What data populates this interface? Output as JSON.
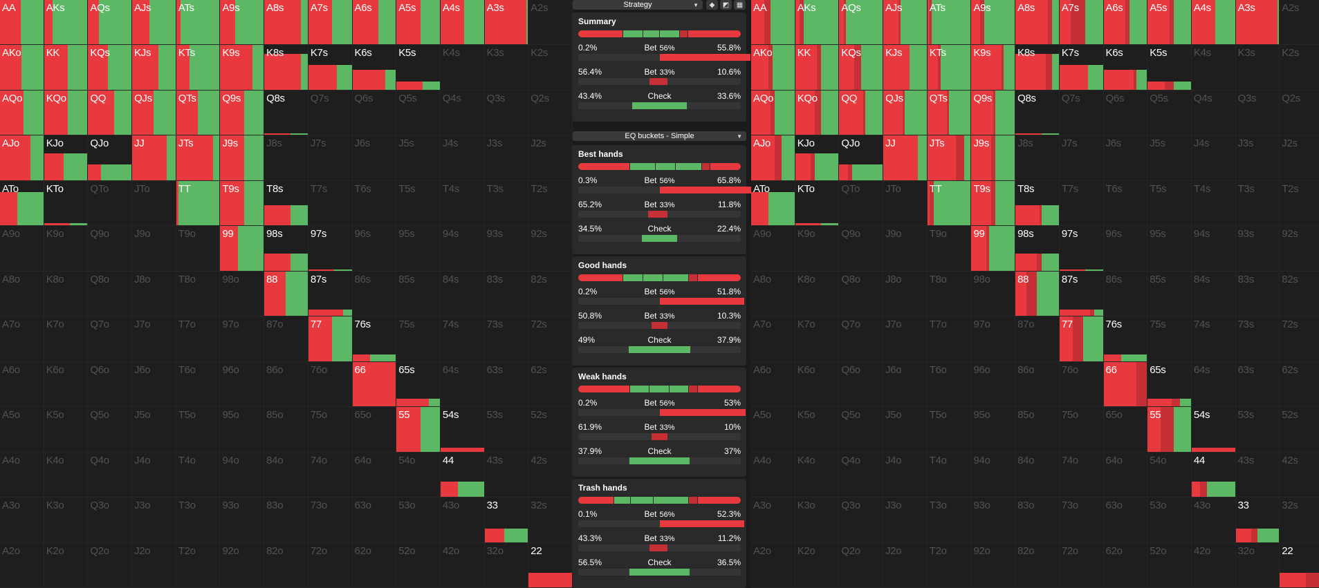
{
  "colors": {
    "bet_large": "#e8393f",
    "bet_small": "#c43035",
    "check": "#5cb865"
  },
  "left_grid": {
    "labels": [
      "AA",
      "AKs",
      "AQs",
      "AJs",
      "ATs",
      "A9s",
      "A8s",
      "A7s",
      "A6s",
      "A5s",
      "A4s",
      "A3s",
      "A2s",
      "AKo",
      "KK",
      "KQs",
      "KJs",
      "KTs",
      "K9s",
      "K8s",
      "K7s",
      "K6s",
      "K5s",
      "K4s",
      "K3s",
      "K2s",
      "AQo",
      "KQo",
      "QQ",
      "QJs",
      "QTs",
      "Q9s",
      "Q8s",
      "Q7s",
      "Q6s",
      "Q5s",
      "Q4s",
      "Q3s",
      "Q2s",
      "AJo",
      "KJo",
      "QJo",
      "JJ",
      "JTs",
      "J9s",
      "J8s",
      "J7s",
      "J6s",
      "J5s",
      "J4s",
      "J3s",
      "J2s",
      "ATo",
      "KTo",
      "QTo",
      "JTo",
      "TT",
      "T9s",
      "T8s",
      "T7s",
      "T6s",
      "T5s",
      "T4s",
      "T3s",
      "T2s",
      "A9o",
      "K9o",
      "Q9o",
      "J9o",
      "T9o",
      "99",
      "98s",
      "97s",
      "96s",
      "95s",
      "94s",
      "93s",
      "92s",
      "A8o",
      "K8o",
      "Q8o",
      "J8o",
      "T8o",
      "98o",
      "88",
      "87s",
      "86s",
      "85s",
      "84s",
      "83s",
      "82s",
      "A7o",
      "K7o",
      "Q7o",
      "J7o",
      "T7o",
      "97o",
      "87o",
      "77",
      "76s",
      "75s",
      "74s",
      "73s",
      "72s",
      "A6o",
      "K6o",
      "Q6o",
      "J6o",
      "T6o",
      "96o",
      "86o",
      "76o",
      "66",
      "65s",
      "64s",
      "63s",
      "62s",
      "A5o",
      "K5o",
      "Q5o",
      "J5o",
      "T5o",
      "95o",
      "85o",
      "75o",
      "65o",
      "55",
      "54s",
      "53s",
      "52s",
      "A4o",
      "K4o",
      "Q4o",
      "J4o",
      "T4o",
      "94o",
      "84o",
      "74o",
      "64o",
      "54o",
      "44",
      "43s",
      "42s",
      "A3o",
      "K3o",
      "Q3o",
      "J3o",
      "T3o",
      "93o",
      "83o",
      "73o",
      "63o",
      "53o",
      "43o",
      "33",
      "32s",
      "A2o",
      "K2o",
      "Q2o",
      "J2o",
      "T2o",
      "92o",
      "82o",
      "72o",
      "62o",
      "52o",
      "42o",
      "32o",
      "22"
    ]
  },
  "right_grid": {
    "labels": [
      "AA",
      "AKs",
      "AQs",
      "AJs",
      "ATs",
      "A9s",
      "A8s",
      "A7s",
      "A6s",
      "A5s",
      "A4s",
      "A3s",
      "A2s",
      "AKo",
      "KK",
      "KQs",
      "KJs",
      "KTs",
      "K9s",
      "K8s",
      "K7s",
      "K6s",
      "K5s",
      "K4s",
      "K3s",
      "K2s",
      "AQo",
      "KQo",
      "QQ",
      "QJs",
      "QTs",
      "Q9s",
      "Q8s",
      "Q7s",
      "Q6s",
      "Q5s",
      "Q4s",
      "Q3s",
      "Q2s",
      "AJo",
      "KJo",
      "QJo",
      "JJ",
      "JTs",
      "J9s",
      "J8s",
      "J7s",
      "J6s",
      "J5s",
      "J4s",
      "J3s",
      "J2s",
      "ATo",
      "KTo",
      "QTo",
      "JTo",
      "TT",
      "T9s",
      "T8s",
      "T7s",
      "T6s",
      "T5s",
      "T4s",
      "T3s",
      "T2s",
      "A9o",
      "K9o",
      "Q9o",
      "J9o",
      "T9o",
      "99",
      "98s",
      "97s",
      "96s",
      "95s",
      "94s",
      "93s",
      "92s",
      "A8o",
      "K8o",
      "Q8o",
      "J8o",
      "T8o",
      "98o",
      "88",
      "87s",
      "86s",
      "85s",
      "84s",
      "83s",
      "82s",
      "A7o",
      "K7o",
      "Q7o",
      "J7o",
      "T7o",
      "97o",
      "87o",
      "77",
      "76s",
      "75s",
      "74s",
      "73s",
      "72s",
      "A6o",
      "K6o",
      "Q6o",
      "J6o",
      "T6o",
      "96o",
      "86o",
      "76o",
      "66",
      "65s",
      "64s",
      "63s",
      "62s",
      "A5o",
      "K5o",
      "Q5o",
      "J5o",
      "T5o",
      "95o",
      "85o",
      "75o",
      "65o",
      "55",
      "54s",
      "53s",
      "52s",
      "A4o",
      "K4o",
      "Q4o",
      "J4o",
      "T4o",
      "94o",
      "84o",
      "74o",
      "64o",
      "54o",
      "44",
      "43s",
      "42s",
      "A3o",
      "K3o",
      "Q3o",
      "J3o",
      "T3o",
      "93o",
      "83o",
      "73o",
      "63o",
      "53o",
      "43o",
      "33",
      "32s",
      "A2o",
      "K2o",
      "Q2o",
      "J2o",
      "T2o",
      "92o",
      "82o",
      "72o",
      "62o",
      "52o",
      "42o",
      "32o",
      "22"
    ]
  },
  "hands": {
    "AA": {
      "w": 1,
      "f": [
        0.48,
        0,
        0.52
      ]
    },
    "AKs": {
      "w": 1,
      "f": [
        0.2,
        0,
        0.8
      ]
    },
    "AQs": {
      "w": 1,
      "f": [
        0.25,
        0,
        0.75
      ]
    },
    "AJs": {
      "w": 1,
      "f": [
        0.4,
        0,
        0.6
      ]
    },
    "ATs": {
      "w": 1,
      "f": [
        0.1,
        0,
        0.9
      ]
    },
    "A9s": {
      "w": 1,
      "f": [
        0.35,
        0,
        0.65
      ]
    },
    "A8s": {
      "w": 1,
      "f": [
        0.85,
        0,
        0.15
      ]
    },
    "A7s": {
      "w": 1,
      "f": [
        0.55,
        0,
        0.45
      ]
    },
    "A6s": {
      "w": 1,
      "f": [
        0.6,
        0,
        0.4
      ]
    },
    "A5s": {
      "w": 1,
      "f": [
        0.55,
        0,
        0.45
      ]
    },
    "A4s": {
      "w": 1,
      "f": [
        0.55,
        0,
        0.45
      ]
    },
    "A3s": {
      "w": 1,
      "f": [
        0.96,
        0,
        0.04
      ]
    },
    "AKo": {
      "w": 1,
      "f": [
        0.5,
        0,
        0.5
      ]
    },
    "KK": {
      "w": 1,
      "f": [
        0.55,
        0,
        0.45
      ]
    },
    "KQs": {
      "w": 1,
      "f": [
        0.45,
        0,
        0.55
      ]
    },
    "KJs": {
      "w": 1,
      "f": [
        0.6,
        0,
        0.4
      ]
    },
    "KTs": {
      "w": 1,
      "f": [
        0.3,
        0,
        0.7
      ]
    },
    "K9s": {
      "w": 1,
      "f": [
        0.75,
        0,
        0.25
      ]
    },
    "K8s": {
      "w": 0.8,
      "f": [
        0.85,
        0,
        0.15
      ]
    },
    "K7s": {
      "w": 0.55,
      "f": [
        0.65,
        0,
        0.35
      ]
    },
    "K6s": {
      "w": 0.45,
      "f": [
        0.75,
        0,
        0.25
      ]
    },
    "K5s": {
      "w": 0.18,
      "f": [
        0.6,
        0,
        0.4
      ]
    },
    "AQo": {
      "w": 1,
      "f": [
        0.55,
        0,
        0.45
      ]
    },
    "KQo": {
      "w": 1,
      "f": [
        0.55,
        0,
        0.45
      ]
    },
    "QQ": {
      "w": 1,
      "f": [
        0.6,
        0,
        0.4
      ]
    },
    "QJs": {
      "w": 1,
      "f": [
        0.5,
        0,
        0.5
      ]
    },
    "QTs": {
      "w": 1,
      "f": [
        0.5,
        0,
        0.5
      ]
    },
    "Q9s": {
      "w": 1,
      "f": [
        0.55,
        0,
        0.45
      ]
    },
    "Q8s": {
      "w": 0.04,
      "f": [
        0.6,
        0,
        0.4
      ]
    },
    "AJo": {
      "w": 1,
      "f": [
        0.7,
        0,
        0.3
      ]
    },
    "KJo": {
      "w": 0.6,
      "f": [
        0.45,
        0,
        0.55
      ]
    },
    "QJo": {
      "w": 0.35,
      "f": [
        0.3,
        0,
        0.7
      ]
    },
    "JJ": {
      "w": 1,
      "f": [
        0.8,
        0,
        0.2
      ]
    },
    "JTs": {
      "w": 1,
      "f": [
        0.85,
        0,
        0.15
      ]
    },
    "J9s": {
      "w": 1,
      "f": [
        0.55,
        0,
        0.45
      ]
    },
    "ATo": {
      "w": 0.75,
      "f": [
        0.4,
        0,
        0.6
      ]
    },
    "KTo": {
      "w": 0.05,
      "f": [
        0.6,
        0,
        0.4
      ]
    },
    "TT": {
      "w": 1,
      "f": [
        0.05,
        0,
        0.95
      ]
    },
    "T9s": {
      "w": 1,
      "f": [
        0.55,
        0,
        0.45
      ]
    },
    "T8s": {
      "w": 0.45,
      "f": [
        0.6,
        0,
        0.4
      ]
    },
    "99": {
      "w": 1,
      "f": [
        0.4,
        0,
        0.6
      ]
    },
    "98s": {
      "w": 0.38,
      "f": [
        0.6,
        0,
        0.4
      ]
    },
    "97s": {
      "w": 0.02,
      "f": [
        0.6,
        0,
        0.4
      ]
    },
    "88": {
      "w": 1,
      "f": [
        0.5,
        0,
        0.5
      ]
    },
    "87s": {
      "w": 0.15,
      "f": [
        0.8,
        0,
        0.2
      ]
    },
    "77": {
      "w": 1,
      "f": [
        0.55,
        0,
        0.45
      ]
    },
    "76s": {
      "w": 0.15,
      "f": [
        0.4,
        0,
        0.6
      ]
    },
    "66": {
      "w": 1,
      "f": [
        1,
        0,
        0
      ]
    },
    "65s": {
      "w": 0.18,
      "f": [
        0.75,
        0,
        0.25
      ]
    },
    "55": {
      "w": 1,
      "f": [
        0.55,
        0,
        0.45
      ]
    },
    "54s": {
      "w": 0.08,
      "f": [
        1,
        0,
        0
      ]
    },
    "44": {
      "w": 0.35,
      "f": [
        0.4,
        0,
        0.6
      ]
    },
    "33": {
      "w": 0.3,
      "f": [
        0.45,
        0,
        0.55
      ]
    },
    "22": {
      "w": 0.33,
      "f": [
        1,
        0,
        0
      ]
    }
  },
  "hands_right": {
    "AA": {
      "w": 1,
      "f": [
        0.3,
        0.15,
        0.55
      ]
    },
    "AKs": {
      "w": 1,
      "f": [
        0.1,
        0.1,
        0.8
      ]
    },
    "AQs": {
      "w": 1,
      "f": [
        0.1,
        0.05,
        0.85
      ]
    },
    "AJs": {
      "w": 1,
      "f": [
        0.35,
        0.05,
        0.6
      ]
    },
    "ATs": {
      "w": 1,
      "f": [
        0.05,
        0.05,
        0.9
      ]
    },
    "A9s": {
      "w": 1,
      "f": [
        0.2,
        0.1,
        0.7
      ]
    },
    "A8s": {
      "w": 1,
      "f": [
        0.75,
        0.1,
        0.15
      ]
    },
    "A7s": {
      "w": 1,
      "f": [
        0.25,
        0.35,
        0.4
      ]
    },
    "A6s": {
      "w": 1,
      "f": [
        0.5,
        0.1,
        0.4
      ]
    },
    "A5s": {
      "w": 1,
      "f": [
        0.5,
        0.1,
        0.4
      ]
    },
    "A4s": {
      "w": 1,
      "f": [
        0.55,
        0,
        0.45
      ]
    },
    "A3s": {
      "w": 1,
      "f": [
        0.96,
        0,
        0.04
      ]
    },
    "AKo": {
      "w": 1,
      "f": [
        0.4,
        0.1,
        0.5
      ]
    },
    "KK": {
      "w": 1,
      "f": [
        0.5,
        0.1,
        0.4
      ]
    },
    "KQs": {
      "w": 1,
      "f": [
        0.35,
        0.15,
        0.5
      ]
    },
    "KJs": {
      "w": 1,
      "f": [
        0.6,
        0,
        0.4
      ]
    },
    "KTs": {
      "w": 1,
      "f": [
        0.25,
        0.05,
        0.7
      ]
    },
    "K9s": {
      "w": 1,
      "f": [
        0.7,
        0.05,
        0.25
      ]
    },
    "K8s": {
      "w": 0.8,
      "f": [
        0.7,
        0.15,
        0.15
      ]
    },
    "K7s": {
      "w": 0.55,
      "f": [
        0.65,
        0,
        0.35
      ]
    },
    "K6s": {
      "w": 0.45,
      "f": [
        0.7,
        0.05,
        0.25
      ]
    },
    "K5s": {
      "w": 0.18,
      "f": [
        0.4,
        0.2,
        0.4
      ]
    },
    "AQo": {
      "w": 1,
      "f": [
        0.45,
        0.1,
        0.45
      ]
    },
    "KQo": {
      "w": 1,
      "f": [
        0.45,
        0.15,
        0.4
      ]
    },
    "QQ": {
      "w": 1,
      "f": [
        0.55,
        0.05,
        0.4
      ]
    },
    "QJs": {
      "w": 1,
      "f": [
        0.45,
        0.05,
        0.5
      ]
    },
    "QTs": {
      "w": 1,
      "f": [
        0.45,
        0.05,
        0.5
      ]
    },
    "Q9s": {
      "w": 1,
      "f": [
        0.5,
        0.05,
        0.45
      ]
    },
    "Q8s": {
      "w": 0.04,
      "f": [
        0.6,
        0,
        0.4
      ]
    },
    "AJo": {
      "w": 1,
      "f": [
        0.55,
        0.15,
        0.3
      ]
    },
    "KJo": {
      "w": 0.6,
      "f": [
        0.35,
        0.1,
        0.55
      ]
    },
    "QJo": {
      "w": 0.35,
      "f": [
        0.2,
        0.1,
        0.7
      ]
    },
    "JJ": {
      "w": 1,
      "f": [
        0.8,
        0,
        0.2
      ]
    },
    "JTs": {
      "w": 1,
      "f": [
        0.65,
        0.2,
        0.15
      ]
    },
    "J9s": {
      "w": 1,
      "f": [
        0.45,
        0.1,
        0.45
      ]
    },
    "ATo": {
      "w": 0.75,
      "f": [
        0.4,
        0,
        0.6
      ]
    },
    "KTo": {
      "w": 0.05,
      "f": [
        0.6,
        0,
        0.4
      ]
    },
    "TT": {
      "w": 1,
      "f": [
        0.05,
        0.1,
        0.85
      ]
    },
    "T9s": {
      "w": 1,
      "f": [
        0.45,
        0.1,
        0.45
      ]
    },
    "T8s": {
      "w": 0.45,
      "f": [
        0.55,
        0.05,
        0.4
      ]
    },
    "99": {
      "w": 1,
      "f": [
        0.35,
        0.05,
        0.6
      ]
    },
    "98s": {
      "w": 0.38,
      "f": [
        0.5,
        0.1,
        0.4
      ]
    },
    "97s": {
      "w": 0.02,
      "f": [
        0.6,
        0,
        0.4
      ]
    },
    "88": {
      "w": 1,
      "f": [
        0.25,
        0.25,
        0.5
      ]
    },
    "87s": {
      "w": 0.15,
      "f": [
        0.7,
        0.1,
        0.2
      ]
    },
    "77": {
      "w": 1,
      "f": [
        0.3,
        0.25,
        0.45
      ]
    },
    "76s": {
      "w": 0.15,
      "f": [
        0.4,
        0,
        0.6
      ]
    },
    "66": {
      "w": 1,
      "f": [
        0.75,
        0.25,
        0
      ]
    },
    "65s": {
      "w": 0.18,
      "f": [
        0.55,
        0.2,
        0.25
      ]
    },
    "55": {
      "w": 1,
      "f": [
        0.3,
        0.3,
        0.4
      ]
    },
    "54s": {
      "w": 0.08,
      "f": [
        1,
        0,
        0
      ]
    },
    "44": {
      "w": 0.35,
      "f": [
        0.2,
        0.15,
        0.65
      ]
    },
    "33": {
      "w": 0.3,
      "f": [
        0.35,
        0.15,
        0.5
      ]
    },
    "22": {
      "w": 0.33,
      "f": [
        0.6,
        0.4,
        0
      ]
    }
  },
  "toolbar": {
    "strategy_label": "Strategy",
    "buckets_label": "EQ buckets - Simple",
    "icons": [
      "cube-icon",
      "contrast-icon",
      "grid-icon"
    ]
  },
  "summary": {
    "title": "Summary",
    "bar": [
      0.28,
      0.12,
      0.1,
      0.12,
      0.05,
      0.33
    ],
    "rows": [
      {
        "left": "0.2%",
        "action": "Bet",
        "size": "56%",
        "right": "55.8%",
        "fill": 0.56,
        "kind": "bet_large"
      },
      {
        "left": "56.4%",
        "action": "Bet",
        "size": "33%",
        "right": "10.6%",
        "fill": 0.11,
        "kind": "bet_small"
      },
      {
        "left": "43.4%",
        "action": "Check",
        "size": "",
        "right": "33.6%",
        "fill": 0.34,
        "kind": "check"
      }
    ]
  },
  "buckets": [
    {
      "title": "Best hands",
      "bar": [
        0.32,
        0.16,
        0.12,
        0.16,
        0.05,
        0.19
      ],
      "rows": [
        {
          "left": "0.3%",
          "action": "Bet",
          "size": "56%",
          "right": "65.8%",
          "fill": 0.66,
          "kind": "bet_large"
        },
        {
          "left": "65.2%",
          "action": "Bet",
          "size": "33%",
          "right": "11.8%",
          "fill": 0.12,
          "kind": "bet_small"
        },
        {
          "left": "34.5%",
          "action": "Check",
          "size": "",
          "right": "22.4%",
          "fill": 0.22,
          "kind": "check"
        }
      ]
    },
    {
      "title": "Good hands",
      "bar": [
        0.28,
        0.12,
        0.12,
        0.16,
        0.05,
        0.27
      ],
      "rows": [
        {
          "left": "0.2%",
          "action": "Bet",
          "size": "56%",
          "right": "51.8%",
          "fill": 0.52,
          "kind": "bet_large"
        },
        {
          "left": "50.8%",
          "action": "Bet",
          "size": "33%",
          "right": "10.3%",
          "fill": 0.1,
          "kind": "bet_small"
        },
        {
          "left": "49%",
          "action": "Check",
          "size": "",
          "right": "37.9%",
          "fill": 0.38,
          "kind": "check"
        }
      ]
    },
    {
      "title": "Weak hands",
      "bar": [
        0.32,
        0.12,
        0.12,
        0.12,
        0.05,
        0.27
      ],
      "rows": [
        {
          "left": "0.2%",
          "action": "Bet",
          "size": "56%",
          "right": "53%",
          "fill": 0.53,
          "kind": "bet_large"
        },
        {
          "left": "61.9%",
          "action": "Bet",
          "size": "33%",
          "right": "10%",
          "fill": 0.1,
          "kind": "bet_small"
        },
        {
          "left": "37.9%",
          "action": "Check",
          "size": "",
          "right": "37%",
          "fill": 0.37,
          "kind": "check"
        }
      ]
    },
    {
      "title": "Trash hands",
      "bar": [
        0.22,
        0.1,
        0.14,
        0.22,
        0.05,
        0.27
      ],
      "rows": [
        {
          "left": "0.1%",
          "action": "Bet",
          "size": "56%",
          "right": "52.3%",
          "fill": 0.52,
          "kind": "bet_large"
        },
        {
          "left": "43.3%",
          "action": "Bet",
          "size": "33%",
          "right": "11.2%",
          "fill": 0.11,
          "kind": "bet_small"
        },
        {
          "left": "56.5%",
          "action": "Check",
          "size": "",
          "right": "36.5%",
          "fill": 0.37,
          "kind": "check"
        }
      ]
    }
  ]
}
